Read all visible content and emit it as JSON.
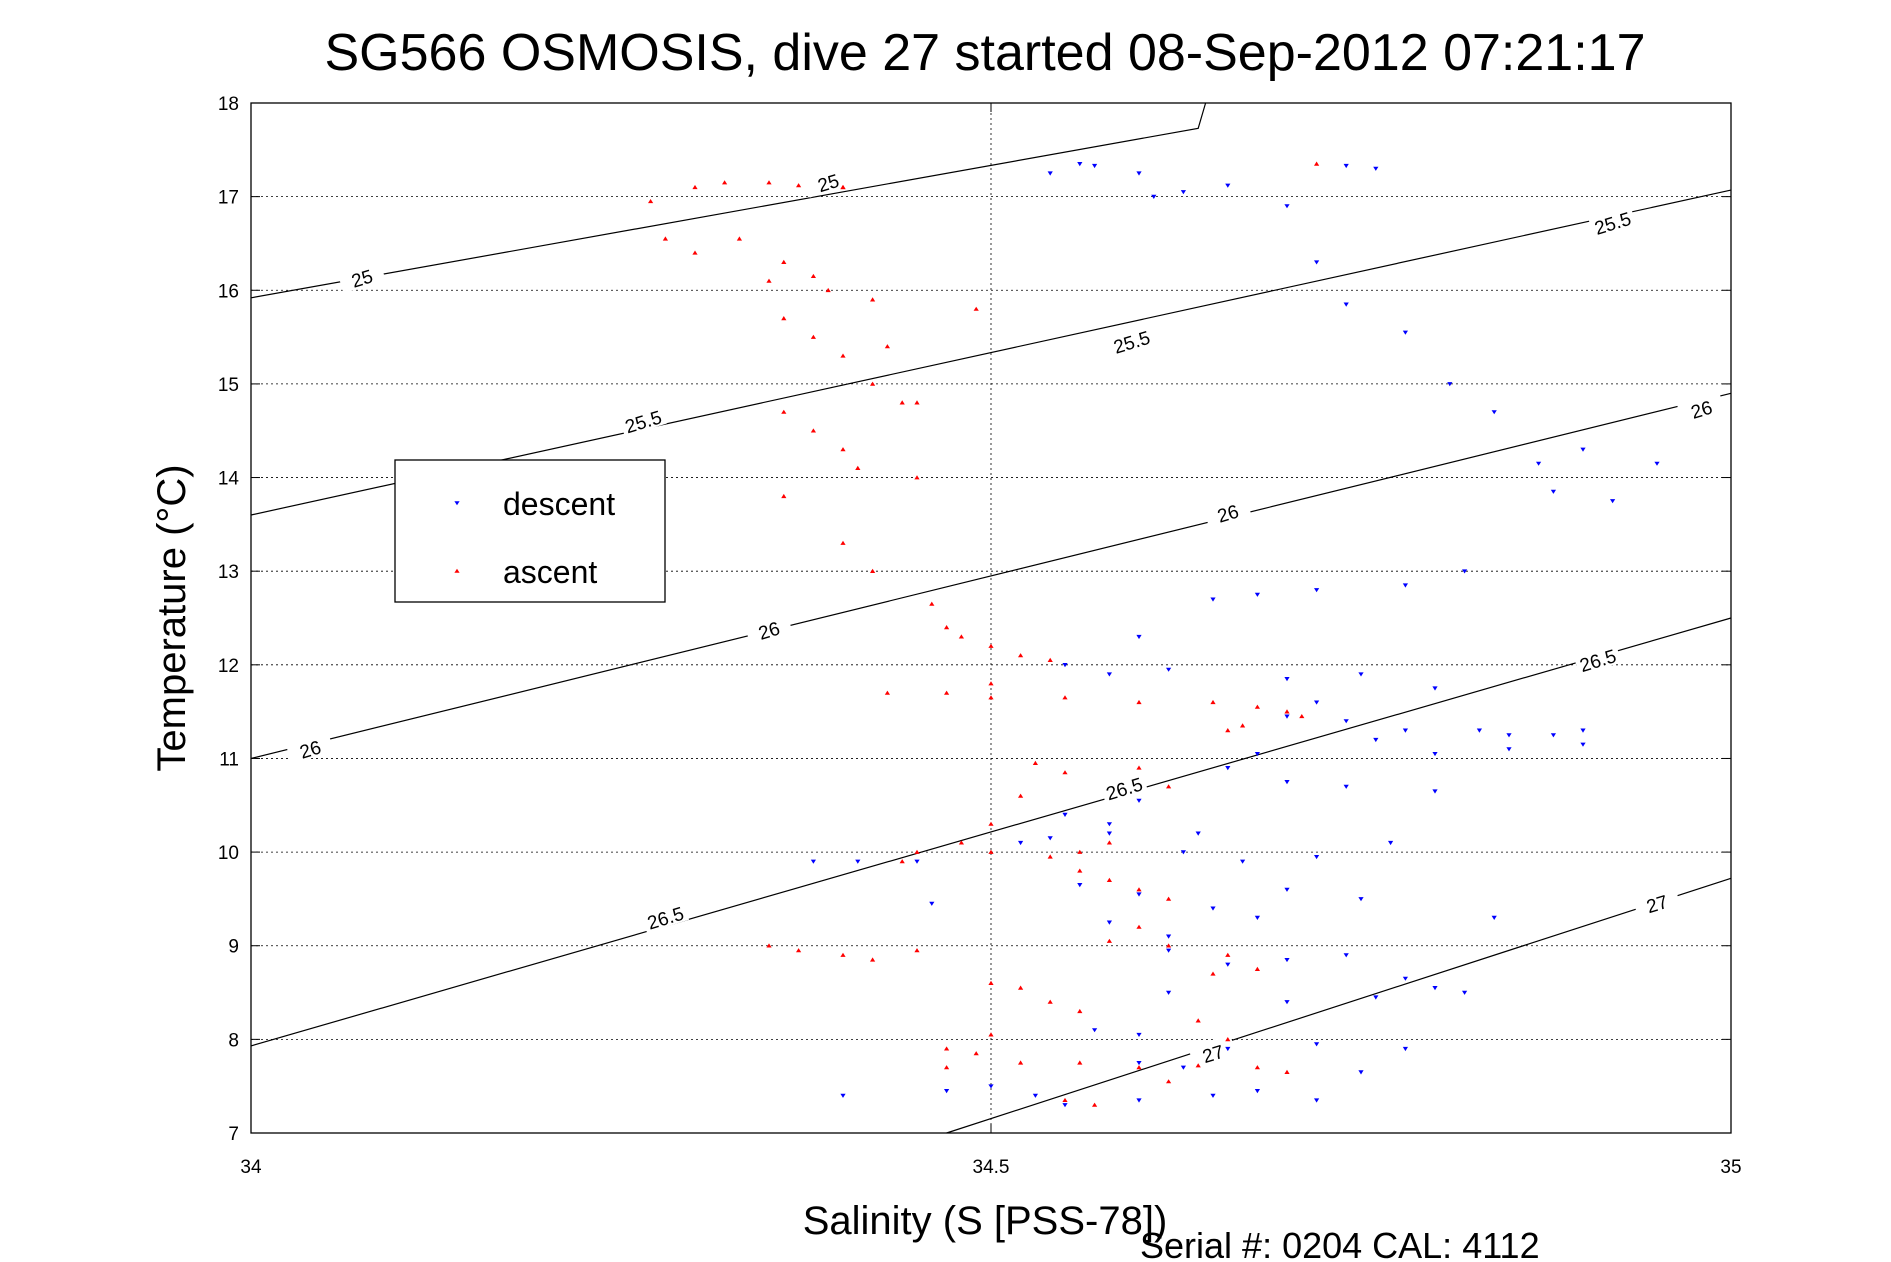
{
  "chart_data": {
    "type": "scatter",
    "title": "SG566 OSMOSIS, dive 27 started 08-Sep-2012 07:21:17",
    "xlabel": "Salinity (S [PSS-78])",
    "ylabel": "Temperature (°C)",
    "xlim": [
      34,
      35
    ],
    "ylim": [
      7,
      18
    ],
    "x_ticks": [
      34,
      34.5,
      35
    ],
    "x_tick_labels": [
      "34",
      "34.5",
      "35"
    ],
    "y_ticks": [
      7,
      8,
      9,
      10,
      11,
      12,
      13,
      14,
      15,
      16,
      17,
      18
    ],
    "y_tick_labels": [
      "7",
      "8",
      "9",
      "10",
      "11",
      "12",
      "13",
      "14",
      "15",
      "16",
      "17",
      "18"
    ],
    "grid": true,
    "legend_position": "left",
    "footer": "Serial #: 0204  CAL: 4112",
    "density_contours": [
      {
        "level": "25",
        "points": [
          [
            34.0,
            15.92
          ],
          [
            34.64,
            17.73
          ],
          [
            34.645,
            18.0
          ]
        ],
        "labels": [
          {
            "x": 34.075,
            "y": 16.13
          },
          {
            "x": 34.39,
            "y": 17.15
          }
        ]
      },
      {
        "level": "25.5",
        "points": [
          [
            34.0,
            13.6
          ],
          [
            35.0,
            17.07
          ]
        ],
        "labels": [
          {
            "x": 34.265,
            "y": 14.6
          },
          {
            "x": 34.595,
            "y": 15.45
          },
          {
            "x": 34.92,
            "y": 16.72
          }
        ]
      },
      {
        "level": "26",
        "points": [
          [
            34.0,
            11.0
          ],
          [
            35.0,
            14.9
          ]
        ],
        "labels": [
          {
            "x": 34.04,
            "y": 11.1
          },
          {
            "x": 34.35,
            "y": 12.37
          },
          {
            "x": 34.66,
            "y": 13.62
          },
          {
            "x": 34.98,
            "y": 14.73
          }
        ]
      },
      {
        "level": "26.5",
        "points": [
          [
            34.0,
            7.93
          ],
          [
            35.0,
            12.5
          ]
        ],
        "labels": [
          {
            "x": 34.28,
            "y": 9.3
          },
          {
            "x": 34.59,
            "y": 10.68
          },
          {
            "x": 34.91,
            "y": 12.05
          }
        ]
      },
      {
        "level": "27",
        "points": [
          [
            34.47,
            7.0
          ],
          [
            35.0,
            9.72
          ]
        ],
        "labels": [
          {
            "x": 34.65,
            "y": 7.85
          },
          {
            "x": 34.95,
            "y": 9.45
          }
        ]
      }
    ],
    "series": [
      {
        "name": "descent",
        "color": "#0000ff",
        "marker": "triangle-down",
        "points": [
          [
            34.54,
            17.25
          ],
          [
            34.56,
            17.35
          ],
          [
            34.57,
            17.33
          ],
          [
            34.6,
            17.25
          ],
          [
            34.61,
            17.0
          ],
          [
            34.63,
            17.05
          ],
          [
            34.66,
            17.12
          ],
          [
            34.7,
            16.9
          ],
          [
            34.74,
            17.33
          ],
          [
            34.76,
            17.3
          ],
          [
            34.72,
            16.3
          ],
          [
            34.74,
            15.85
          ],
          [
            34.78,
            15.55
          ],
          [
            34.81,
            15.0
          ],
          [
            34.84,
            14.7
          ],
          [
            34.87,
            14.15
          ],
          [
            34.88,
            13.85
          ],
          [
            34.9,
            14.3
          ],
          [
            34.92,
            13.75
          ],
          [
            34.95,
            14.15
          ],
          [
            34.82,
            13.0
          ],
          [
            34.78,
            12.85
          ],
          [
            34.72,
            12.8
          ],
          [
            34.68,
            12.75
          ],
          [
            34.65,
            12.7
          ],
          [
            34.6,
            12.3
          ],
          [
            34.55,
            12.0
          ],
          [
            34.58,
            11.9
          ],
          [
            34.62,
            11.95
          ],
          [
            34.7,
            11.85
          ],
          [
            34.75,
            11.9
          ],
          [
            34.8,
            11.75
          ],
          [
            34.72,
            11.6
          ],
          [
            34.7,
            11.45
          ],
          [
            34.74,
            11.4
          ],
          [
            34.78,
            11.3
          ],
          [
            34.83,
            11.3
          ],
          [
            34.88,
            11.25
          ],
          [
            34.9,
            11.15
          ],
          [
            34.85,
            11.1
          ],
          [
            34.68,
            11.05
          ],
          [
            34.66,
            10.9
          ],
          [
            34.7,
            10.75
          ],
          [
            34.74,
            10.7
          ],
          [
            34.8,
            10.65
          ],
          [
            34.6,
            10.55
          ],
          [
            34.55,
            10.4
          ],
          [
            34.58,
            10.2
          ],
          [
            34.63,
            10.0
          ],
          [
            34.67,
            9.9
          ],
          [
            34.72,
            9.95
          ],
          [
            34.77,
            10.1
          ],
          [
            34.56,
            9.65
          ],
          [
            34.6,
            9.55
          ],
          [
            34.65,
            9.4
          ],
          [
            34.7,
            9.6
          ],
          [
            34.75,
            9.5
          ],
          [
            34.58,
            9.25
          ],
          [
            34.62,
            9.1
          ],
          [
            34.66,
            8.8
          ],
          [
            34.7,
            8.85
          ],
          [
            34.74,
            8.9
          ],
          [
            34.78,
            8.65
          ],
          [
            34.8,
            8.55
          ],
          [
            34.62,
            8.5
          ],
          [
            34.57,
            8.1
          ],
          [
            34.6,
            8.05
          ],
          [
            34.66,
            7.9
          ],
          [
            34.72,
            7.95
          ],
          [
            34.75,
            7.65
          ],
          [
            34.6,
            7.75
          ],
          [
            34.63,
            7.7
          ],
          [
            34.55,
            7.3
          ],
          [
            34.6,
            7.35
          ],
          [
            34.65,
            7.4
          ],
          [
            34.68,
            7.45
          ],
          [
            34.72,
            7.35
          ],
          [
            34.47,
            7.45
          ],
          [
            34.5,
            7.5
          ],
          [
            34.53,
            7.4
          ],
          [
            34.45,
            9.9
          ],
          [
            34.38,
            9.9
          ],
          [
            34.41,
            9.9
          ],
          [
            34.46,
            9.45
          ],
          [
            34.4,
            7.4
          ],
          [
            34.52,
            10.1
          ],
          [
            34.54,
            10.15
          ],
          [
            34.58,
            10.3
          ],
          [
            34.64,
            10.2
          ],
          [
            34.68,
            9.3
          ],
          [
            34.62,
            8.95
          ],
          [
            34.7,
            8.4
          ],
          [
            34.76,
            8.45
          ],
          [
            34.82,
            8.5
          ],
          [
            34.78,
            7.9
          ],
          [
            34.84,
            9.3
          ],
          [
            34.9,
            11.3
          ],
          [
            34.85,
            11.25
          ],
          [
            34.8,
            11.05
          ],
          [
            34.76,
            11.2
          ]
        ]
      },
      {
        "name": "ascent",
        "color": "#ff0000",
        "marker": "triangle-up",
        "points": [
          [
            34.27,
            16.95
          ],
          [
            34.3,
            17.1
          ],
          [
            34.32,
            17.15
          ],
          [
            34.35,
            17.15
          ],
          [
            34.37,
            17.12
          ],
          [
            34.4,
            17.1
          ],
          [
            34.28,
            16.55
          ],
          [
            34.3,
            16.4
          ],
          [
            34.33,
            16.55
          ],
          [
            34.35,
            16.1
          ],
          [
            34.36,
            16.3
          ],
          [
            34.38,
            16.15
          ],
          [
            34.39,
            16.0
          ],
          [
            34.36,
            15.7
          ],
          [
            34.38,
            15.5
          ],
          [
            34.4,
            15.3
          ],
          [
            34.42,
            15.9
          ],
          [
            34.43,
            15.4
          ],
          [
            34.42,
            15.0
          ],
          [
            34.44,
            14.8
          ],
          [
            34.36,
            14.7
          ],
          [
            34.38,
            14.5
          ],
          [
            34.4,
            14.3
          ],
          [
            34.41,
            14.1
          ],
          [
            34.36,
            13.8
          ],
          [
            34.4,
            13.3
          ],
          [
            34.42,
            13.0
          ],
          [
            34.45,
            14.8
          ],
          [
            34.45,
            14.0
          ],
          [
            34.49,
            15.8
          ],
          [
            34.46,
            12.65
          ],
          [
            34.47,
            12.4
          ],
          [
            34.48,
            12.3
          ],
          [
            34.5,
            12.2
          ],
          [
            34.52,
            12.1
          ],
          [
            34.54,
            12.05
          ],
          [
            34.47,
            11.7
          ],
          [
            34.5,
            11.65
          ],
          [
            34.55,
            11.65
          ],
          [
            34.6,
            11.6
          ],
          [
            34.65,
            11.6
          ],
          [
            34.68,
            11.55
          ],
          [
            34.7,
            11.5
          ],
          [
            34.71,
            11.45
          ],
          [
            34.67,
            11.35
          ],
          [
            34.66,
            11.3
          ],
          [
            34.53,
            10.95
          ],
          [
            34.55,
            10.85
          ],
          [
            34.6,
            10.9
          ],
          [
            34.62,
            10.7
          ],
          [
            34.52,
            10.6
          ],
          [
            34.5,
            10.3
          ],
          [
            34.48,
            10.1
          ],
          [
            34.45,
            10.0
          ],
          [
            34.44,
            9.9
          ],
          [
            34.5,
            10.0
          ],
          [
            34.54,
            9.95
          ],
          [
            34.56,
            9.8
          ],
          [
            34.58,
            9.7
          ],
          [
            34.6,
            9.6
          ],
          [
            34.62,
            9.5
          ],
          [
            34.6,
            9.2
          ],
          [
            34.58,
            9.05
          ],
          [
            34.62,
            9.0
          ],
          [
            34.66,
            8.9
          ],
          [
            34.68,
            8.75
          ],
          [
            34.65,
            8.7
          ],
          [
            34.5,
            8.6
          ],
          [
            34.52,
            8.55
          ],
          [
            34.54,
            8.4
          ],
          [
            34.56,
            8.3
          ],
          [
            34.5,
            8.05
          ],
          [
            34.47,
            7.9
          ],
          [
            34.49,
            7.85
          ],
          [
            34.47,
            7.7
          ],
          [
            34.52,
            7.75
          ],
          [
            34.56,
            7.75
          ],
          [
            34.6,
            7.7
          ],
          [
            34.64,
            7.72
          ],
          [
            34.68,
            7.7
          ],
          [
            34.55,
            7.35
          ],
          [
            34.57,
            7.3
          ],
          [
            34.35,
            9.0
          ],
          [
            34.37,
            8.95
          ],
          [
            34.4,
            8.9
          ],
          [
            34.42,
            8.85
          ],
          [
            34.45,
            8.95
          ],
          [
            34.5,
            11.8
          ],
          [
            34.43,
            11.7
          ],
          [
            34.56,
            10.0
          ],
          [
            34.58,
            10.1
          ],
          [
            34.66,
            8.0
          ],
          [
            34.7,
            7.65
          ],
          [
            34.72,
            17.35
          ],
          [
            34.4,
            17.1
          ],
          [
            34.62,
            7.55
          ],
          [
            34.64,
            8.2
          ]
        ]
      }
    ]
  }
}
